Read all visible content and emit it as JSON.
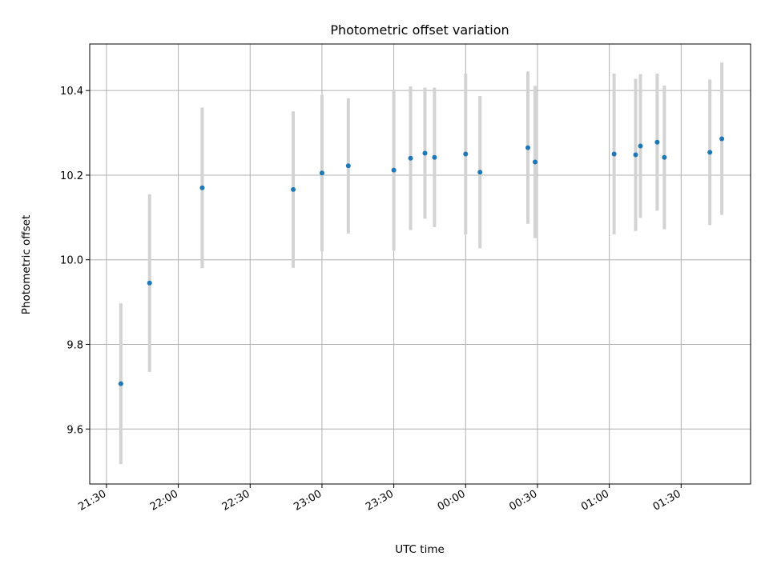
{
  "chart_data": {
    "type": "scatter",
    "title": "Photometric offset variation",
    "xlabel": "UTC time",
    "ylabel": "Photometric offset",
    "xlim": [
      "21:23",
      "01:59"
    ],
    "ylim": [
      9.47,
      10.51
    ],
    "grid": true,
    "x_ticks": [
      "21:30",
      "22:00",
      "22:30",
      "23:00",
      "23:30",
      "00:00",
      "00:30",
      "01:00",
      "01:30"
    ],
    "y_ticks": [
      "9.6",
      "9.8",
      "10.0",
      "10.2",
      "10.4"
    ],
    "colors": {
      "points": "#1f77b4",
      "errorbars": "#d3d3d3",
      "grid": "#b0b0b0"
    },
    "points": [
      {
        "x": "21:36",
        "y": 9.707,
        "err": 0.19
      },
      {
        "x": "21:48",
        "y": 9.945,
        "err": 0.21
      },
      {
        "x": "22:10",
        "y": 10.17,
        "err": 0.19
      },
      {
        "x": "22:48",
        "y": 10.166,
        "err": 0.185
      },
      {
        "x": "23:00",
        "y": 10.205,
        "err": 0.185
      },
      {
        "x": "23:11",
        "y": 10.222,
        "err": 0.16
      },
      {
        "x": "23:30",
        "y": 10.212,
        "err": 0.19
      },
      {
        "x": "23:37",
        "y": 10.24,
        "err": 0.17
      },
      {
        "x": "23:43",
        "y": 10.252,
        "err": 0.155
      },
      {
        "x": "23:47",
        "y": 10.242,
        "err": 0.165
      },
      {
        "x": "00:00",
        "y": 10.25,
        "err": 0.19
      },
      {
        "x": "00:06",
        "y": 10.207,
        "err": 0.18
      },
      {
        "x": "00:26",
        "y": 10.265,
        "err": 0.18
      },
      {
        "x": "00:29",
        "y": 10.231,
        "err": 0.18
      },
      {
        "x": "01:02",
        "y": 10.25,
        "err": 0.19
      },
      {
        "x": "01:11",
        "y": 10.248,
        "err": 0.18
      },
      {
        "x": "01:13",
        "y": 10.269,
        "err": 0.17
      },
      {
        "x": "01:20",
        "y": 10.278,
        "err": 0.162
      },
      {
        "x": "01:23",
        "y": 10.242,
        "err": 0.17
      },
      {
        "x": "01:42",
        "y": 10.254,
        "err": 0.172
      },
      {
        "x": "01:47",
        "y": 10.286,
        "err": 0.18
      }
    ]
  }
}
